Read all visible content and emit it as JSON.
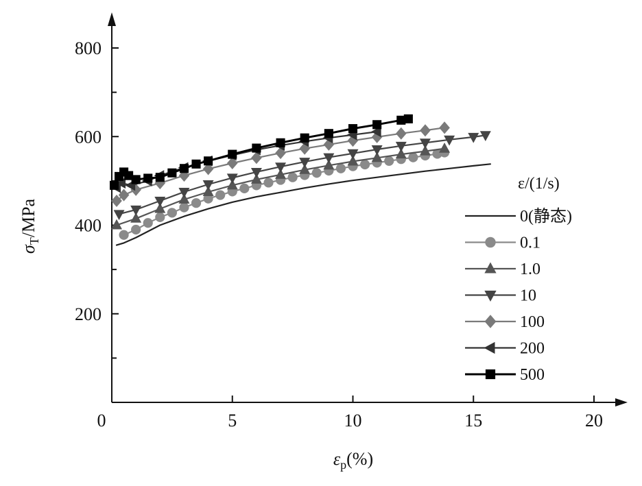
{
  "chart_data": {
    "type": "line",
    "xlabel_symbol": "ε",
    "xlabel_sub": "p",
    "xlabel_unit": "(%)",
    "ylabel_symbol": "σ",
    "ylabel_sub": "T",
    "ylabel_unit": "/MPa",
    "xlim": [
      0,
      21
    ],
    "ylim": [
      0,
      860
    ],
    "x_ticks": [
      0,
      5,
      10,
      15,
      20
    ],
    "x_tick_labels": [
      "0",
      "5",
      "10",
      "15",
      "20"
    ],
    "y_ticks": [
      200,
      400,
      600,
      800
    ],
    "y_minor_ticks": [
      100,
      300,
      500,
      700
    ],
    "y_tick_labels": [
      "200",
      "400",
      "600",
      "800"
    ],
    "legend_title": "ε/(1/s)",
    "legend_position": "right",
    "series": [
      {
        "name": "0(静态)",
        "marker": "none",
        "color": "#222222",
        "x": [
          0.2,
          0.5,
          1.0,
          2.0,
          3.0,
          4.0,
          5.0,
          6.0,
          7.0,
          8.0,
          9.0,
          10.0,
          11.0,
          12.0,
          13.0,
          14.0,
          15.0,
          15.7
        ],
        "y": [
          355,
          360,
          372,
          400,
          420,
          437,
          452,
          464,
          474,
          484,
          493,
          501,
          508,
          515,
          522,
          528,
          534,
          538
        ]
      },
      {
        "name": "0.1",
        "marker": "circle",
        "color": "#8a8a8a",
        "x": [
          0.5,
          1.0,
          1.5,
          2.0,
          2.5,
          3.0,
          3.5,
          4.0,
          4.5,
          5.0,
          5.5,
          6.0,
          6.5,
          7.0,
          7.5,
          8.0,
          8.5,
          9.0,
          9.5,
          10.0,
          10.5,
          11.0,
          11.5,
          12.0,
          12.5,
          13.0,
          13.5,
          13.8
        ],
        "y": [
          378,
          390,
          405,
          418,
          428,
          440,
          450,
          460,
          468,
          476,
          483,
          490,
          496,
          502,
          508,
          513,
          518,
          523,
          528,
          533,
          537,
          541,
          545,
          549,
          553,
          557,
          561,
          564
        ]
      },
      {
        "name": "1.0",
        "marker": "triangle-up",
        "color": "#555555",
        "x": [
          0.2,
          1.0,
          2.0,
          3.0,
          4.0,
          5.0,
          6.0,
          7.0,
          8.0,
          9.0,
          10.0,
          11.0,
          12.0,
          13.0,
          13.8
        ],
        "y": [
          400,
          415,
          437,
          458,
          475,
          490,
          503,
          514,
          525,
          535,
          544,
          552,
          560,
          567,
          573
        ]
      },
      {
        "name": "10",
        "marker": "triangle-down",
        "color": "#444444",
        "x": [
          0.3,
          1.0,
          2.0,
          3.0,
          4.0,
          5.0,
          6.0,
          7.0,
          8.0,
          9.0,
          10.0,
          11.0,
          12.0,
          13.0,
          14.0,
          15.0,
          15.5
        ],
        "y": [
          425,
          435,
          455,
          475,
          492,
          507,
          520,
          532,
          543,
          553,
          562,
          571,
          579,
          586,
          593,
          599,
          603
        ]
      },
      {
        "name": "100",
        "marker": "diamond",
        "color": "#7a7a7a",
        "x": [
          0.2,
          0.5,
          1.0,
          2.0,
          3.0,
          4.0,
          5.0,
          6.0,
          7.0,
          8.0,
          9.0,
          10.0,
          11.0,
          12.0,
          13.0,
          13.8
        ],
        "y": [
          455,
          468,
          480,
          495,
          512,
          527,
          540,
          552,
          563,
          573,
          582,
          591,
          599,
          607,
          614,
          620
        ]
      },
      {
        "name": "200",
        "marker": "triangle-left",
        "color": "#333333",
        "x": [
          0.2,
          0.4,
          0.8,
          1.5,
          2.0,
          3.0,
          4.0,
          5.0,
          6.0,
          7.0,
          8.0,
          9.0,
          10.0,
          11.0
        ],
        "y": [
          485,
          495,
          490,
          500,
          512,
          530,
          545,
          558,
          570,
          580,
          589,
          597,
          604,
          611
        ]
      },
      {
        "name": "500",
        "marker": "square",
        "color": "#000000",
        "x": [
          0.1,
          0.3,
          0.5,
          0.7,
          1.0,
          1.5,
          2.0,
          2.5,
          3.0,
          3.5,
          4.0,
          5.0,
          6.0,
          7.0,
          8.0,
          9.0,
          10.0,
          11.0,
          12.0,
          12.3
        ],
        "y": [
          490,
          510,
          520,
          512,
          503,
          506,
          508,
          518,
          528,
          538,
          545,
          560,
          574,
          586,
          597,
          607,
          618,
          627,
          637,
          640
        ]
      }
    ]
  }
}
